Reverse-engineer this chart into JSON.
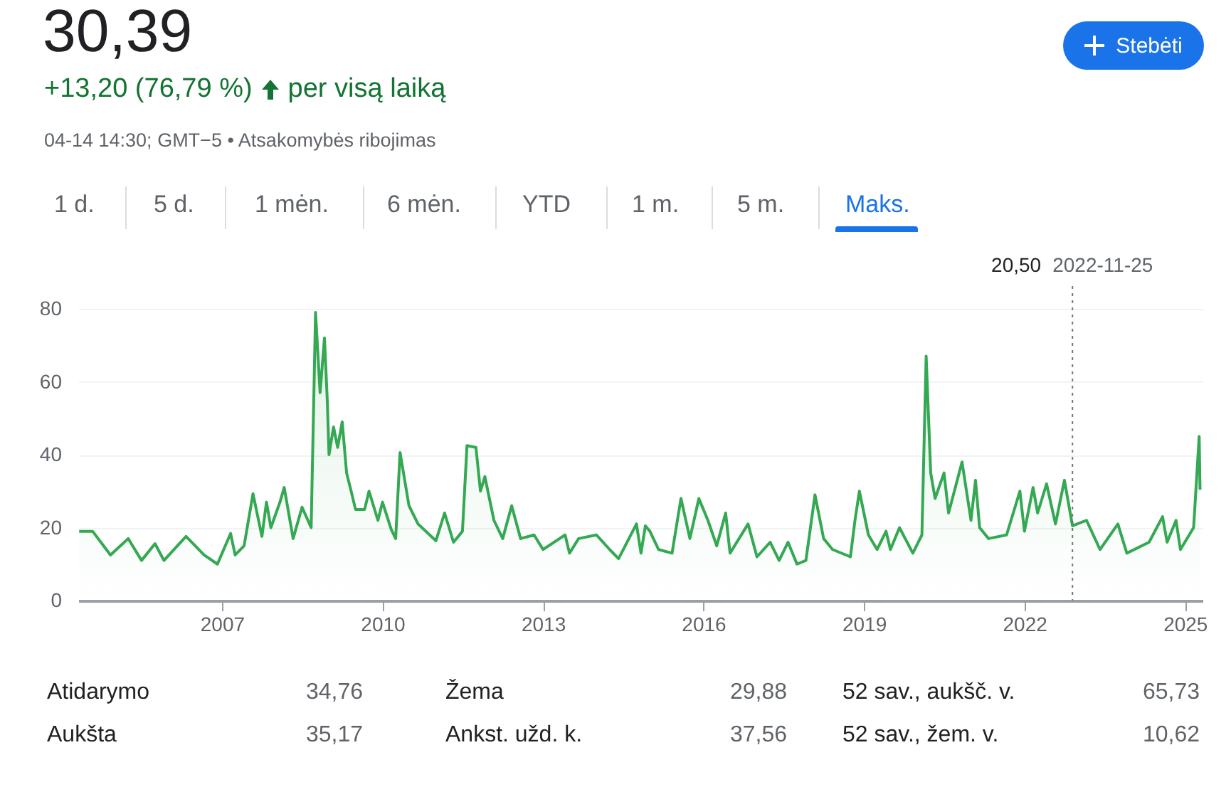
{
  "chart_data": {
    "type": "area",
    "title": "30,39",
    "subtitle": "+13,20 (76,79 %)",
    "annotations": [
      "per visą laiką",
      "04-14 14:30; GMT−5 • Atsakomybės ribojimas",
      "Stebėti",
      "1 d.",
      "5 d.",
      "1 mėn.",
      "6 mėn.",
      "YTD",
      "1 m.",
      "5 m.",
      "Maks.",
      "Atidarymo",
      "34,76",
      "Žema",
      "29,88",
      "52 sav., aukšč. v.",
      "65,73",
      "Aukšta",
      "35,17",
      "Ankst. užd. k.",
      "37,56",
      "52 sav., žem. v.",
      "10,62",
      "20,50"
    ],
    "x": [
      "2004-05",
      "2004-08",
      "2004-12",
      "2005-04",
      "2005-07",
      "2005-10",
      "2005-12",
      "2006-05",
      "2006-09",
      "2006-12",
      "2007-03",
      "2007-04",
      "2007-06",
      "2007-08",
      "2007-10",
      "2007-11",
      "2007-12",
      "2008-02",
      "2008-03",
      "2008-05",
      "2008-07",
      "2008-09",
      "2008-10",
      "2008-11",
      "2008-12",
      "2008-12-20",
      "2009-01",
      "2009-02",
      "2009-03",
      "2009-04",
      "2009-05",
      "2009-06",
      "2009-07",
      "2009-09",
      "2009-10",
      "2009-12",
      "2010-01",
      "2010-03",
      "2010-04",
      "2010-05",
      "2010-07",
      "2010-09",
      "2011-01",
      "2011-03",
      "2011-05",
      "2011-07",
      "2011-08",
      "2011-10",
      "2011-11",
      "2011-12",
      "2012-02",
      "2012-04",
      "2012-06",
      "2012-08",
      "2012-11",
      "2013-01",
      "2013-06",
      "2013-07",
      "2013-09",
      "2014-01",
      "2014-04",
      "2014-06",
      "2014-10",
      "2014-11",
      "2014-12",
      "2015-01",
      "2015-03",
      "2015-06",
      "2015-08",
      "2015-10",
      "2015-12",
      "2016-02",
      "2016-04",
      "2016-06",
      "2016-07",
      "2016-11",
      "2017-01",
      "2017-04",
      "2017-06",
      "2017-08",
      "2017-10",
      "2017-12",
      "2018-02",
      "2018-04",
      "2018-06",
      "2018-10",
      "2018-11",
      "2018-12",
      "2019-02",
      "2019-04",
      "2019-06",
      "2019-07",
      "2019-09",
      "2019-12",
      "2020-02",
      "2020-03",
      "2020-04",
      "2020-05",
      "2020-07",
      "2020-08",
      "2020-11",
      "2021-01",
      "2021-02",
      "2021-03",
      "2021-05",
      "2021-09",
      "2021-12",
      "2022-01",
      "2022-03",
      "2022-04",
      "2022-06",
      "2022-08",
      "2022-10",
      "2022-11-25",
      "2023-03",
      "2023-06",
      "2023-10",
      "2023-12",
      "2024-05",
      "2024-08",
      "2024-09",
      "2024-11",
      "2024-12",
      "2025-03",
      "2025-04-08",
      "2025-04-14"
    ],
    "series": [
      {
        "color": "#34a853",
        "values": [
          19,
          19,
          12.5,
          17,
          11,
          15.6,
          11,
          17.6,
          12.5,
          10,
          18.4,
          12.5,
          15,
          29.3,
          17.6,
          27,
          20,
          27,
          31,
          17,
          25.6,
          20,
          79,
          57,
          72,
          55,
          40,
          47.6,
          42,
          49,
          35,
          30,
          25,
          25,
          30,
          22,
          27,
          19.6,
          17,
          40.6,
          26,
          21,
          16.4,
          24,
          16,
          19,
          42.5,
          42,
          30,
          34,
          22,
          17,
          26,
          17,
          18,
          14,
          18,
          13,
          17,
          18,
          14,
          11.5,
          21,
          13,
          20.5,
          19,
          14,
          13,
          28,
          17,
          28,
          22,
          15,
          24,
          13,
          21,
          12,
          16,
          11,
          16,
          10,
          11,
          29,
          17,
          14,
          12,
          22,
          30,
          18,
          14,
          19,
          14,
          20,
          13,
          18,
          67,
          35,
          28,
          35,
          24,
          38,
          22,
          33,
          20,
          17,
          18,
          30,
          19,
          31,
          24,
          32,
          21,
          33,
          20.5,
          22,
          14,
          21,
          13,
          16,
          23,
          16,
          22,
          14,
          20,
          45,
          30.4
        ]
      }
    ],
    "xlim": [
      "2004-04-25",
      "2025-05-01"
    ],
    "ylim": [
      0,
      80
    ],
    "xticks": [
      "2007",
      "2010",
      "2013",
      "2016",
      "2019",
      "2022",
      "2025"
    ],
    "yticks": [
      0,
      20,
      40,
      60,
      80
    ],
    "grid": "y",
    "ref_lines": [
      {
        "axis": "x",
        "value": "2022-11-25",
        "label": "2022-11-25",
        "color": "#757575",
        "line_style": "dotted"
      }
    ]
  }
}
